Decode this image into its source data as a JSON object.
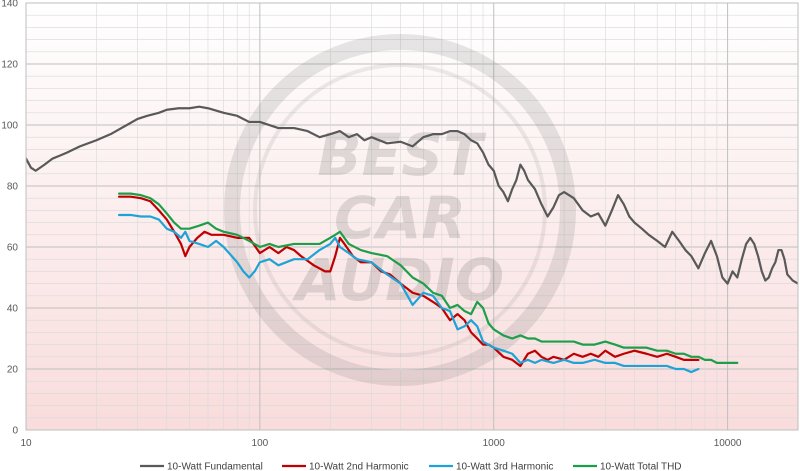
{
  "chart_data": {
    "type": "line",
    "x_scale": "log",
    "xlim": [
      10,
      20000
    ],
    "ylim": [
      0,
      140
    ],
    "y_ticks": [
      0,
      20,
      40,
      60,
      80,
      100,
      120,
      140
    ],
    "x_ticks": [
      10,
      100,
      1000,
      10000
    ],
    "x_tick_labels": [
      "10",
      "100",
      "1000",
      "10000"
    ],
    "grid": true,
    "legend_position": "bottom",
    "colors": {
      "background_top": "#ffffff",
      "background_bottom": "#f9dcdc",
      "grid_major": "#bfbfbf",
      "grid_minor": "#d9d9d9"
    },
    "watermark": [
      "BEST",
      "CAR",
      "AUDIO"
    ],
    "series": [
      {
        "name": "10-Watt Fundamental",
        "color": "#595959",
        "points": [
          [
            10,
            89
          ],
          [
            10.5,
            86
          ],
          [
            11,
            85
          ],
          [
            12,
            87
          ],
          [
            13,
            89
          ],
          [
            14,
            90
          ],
          [
            15,
            91
          ],
          [
            17,
            93
          ],
          [
            20,
            95
          ],
          [
            23,
            97
          ],
          [
            27,
            100
          ],
          [
            30,
            102
          ],
          [
            33,
            103
          ],
          [
            37,
            104
          ],
          [
            40,
            105
          ],
          [
            45,
            105.5
          ],
          [
            50,
            105.5
          ],
          [
            55,
            106
          ],
          [
            60,
            105.5
          ],
          [
            70,
            104
          ],
          [
            80,
            103
          ],
          [
            90,
            101
          ],
          [
            100,
            101
          ],
          [
            120,
            99
          ],
          [
            140,
            99
          ],
          [
            160,
            98
          ],
          [
            180,
            96
          ],
          [
            200,
            97
          ],
          [
            220,
            98
          ],
          [
            240,
            96
          ],
          [
            260,
            97
          ],
          [
            280,
            95
          ],
          [
            300,
            96
          ],
          [
            350,
            94
          ],
          [
            400,
            94.5
          ],
          [
            450,
            93
          ],
          [
            500,
            96
          ],
          [
            550,
            97
          ],
          [
            600,
            97
          ],
          [
            650,
            98
          ],
          [
            700,
            98
          ],
          [
            750,
            97
          ],
          [
            800,
            95
          ],
          [
            850,
            94
          ],
          [
            900,
            91
          ],
          [
            950,
            87
          ],
          [
            1000,
            85
          ],
          [
            1050,
            80
          ],
          [
            1100,
            78
          ],
          [
            1150,
            75
          ],
          [
            1200,
            79
          ],
          [
            1250,
            82
          ],
          [
            1300,
            87
          ],
          [
            1350,
            85
          ],
          [
            1400,
            82
          ],
          [
            1500,
            79
          ],
          [
            1600,
            74
          ],
          [
            1700,
            70
          ],
          [
            1800,
            73
          ],
          [
            1900,
            77
          ],
          [
            2000,
            78
          ],
          [
            2200,
            76
          ],
          [
            2400,
            72
          ],
          [
            2600,
            70
          ],
          [
            2800,
            71
          ],
          [
            3000,
            67
          ],
          [
            3200,
            72
          ],
          [
            3400,
            77
          ],
          [
            3600,
            74
          ],
          [
            3800,
            70
          ],
          [
            4000,
            68
          ],
          [
            4300,
            66
          ],
          [
            4600,
            64
          ],
          [
            5000,
            62
          ],
          [
            5400,
            60
          ],
          [
            5800,
            65
          ],
          [
            6200,
            62
          ],
          [
            6600,
            59
          ],
          [
            7000,
            57
          ],
          [
            7500,
            53
          ],
          [
            8000,
            58
          ],
          [
            8500,
            62
          ],
          [
            9000,
            57
          ],
          [
            9500,
            50
          ],
          [
            10000,
            48
          ],
          [
            10500,
            52
          ],
          [
            11000,
            50
          ],
          [
            11500,
            56
          ],
          [
            12000,
            61
          ],
          [
            12500,
            63
          ],
          [
            13000,
            61
          ],
          [
            13500,
            57
          ],
          [
            14000,
            52
          ],
          [
            14500,
            49
          ],
          [
            15000,
            50
          ],
          [
            15500,
            53
          ],
          [
            16000,
            55
          ],
          [
            16500,
            59
          ],
          [
            17000,
            59
          ],
          [
            17500,
            56
          ],
          [
            18000,
            51
          ],
          [
            19000,
            49
          ],
          [
            20000,
            48
          ]
        ]
      },
      {
        "name": "10-Watt 2nd Harmonic",
        "color": "#c00000",
        "points": [
          [
            25,
            76.5
          ],
          [
            28,
            76.5
          ],
          [
            31,
            76
          ],
          [
            34,
            75
          ],
          [
            37,
            72
          ],
          [
            40,
            69
          ],
          [
            43,
            65
          ],
          [
            46,
            61
          ],
          [
            48,
            57
          ],
          [
            50,
            60
          ],
          [
            54,
            63
          ],
          [
            58,
            65
          ],
          [
            62,
            64
          ],
          [
            70,
            64
          ],
          [
            80,
            63
          ],
          [
            90,
            63
          ],
          [
            100,
            58
          ],
          [
            110,
            60
          ],
          [
            120,
            58
          ],
          [
            130,
            60
          ],
          [
            140,
            59
          ],
          [
            150,
            57
          ],
          [
            170,
            54
          ],
          [
            190,
            52
          ],
          [
            200,
            52
          ],
          [
            210,
            57
          ],
          [
            220,
            63
          ],
          [
            230,
            61
          ],
          [
            250,
            57
          ],
          [
            270,
            55
          ],
          [
            300,
            55
          ],
          [
            330,
            52
          ],
          [
            360,
            51
          ],
          [
            400,
            48
          ],
          [
            450,
            45
          ],
          [
            500,
            44
          ],
          [
            550,
            42
          ],
          [
            600,
            40
          ],
          [
            650,
            36
          ],
          [
            700,
            38
          ],
          [
            750,
            36
          ],
          [
            800,
            32
          ],
          [
            850,
            30
          ],
          [
            900,
            28
          ],
          [
            950,
            28
          ],
          [
            1000,
            27
          ],
          [
            1100,
            24
          ],
          [
            1200,
            23
          ],
          [
            1300,
            21
          ],
          [
            1400,
            25
          ],
          [
            1500,
            26
          ],
          [
            1600,
            24
          ],
          [
            1700,
            23
          ],
          [
            1800,
            24
          ],
          [
            2000,
            23
          ],
          [
            2200,
            25
          ],
          [
            2400,
            24
          ],
          [
            2600,
            25
          ],
          [
            2800,
            24
          ],
          [
            3000,
            26
          ],
          [
            3300,
            24
          ],
          [
            3600,
            25
          ],
          [
            4000,
            26
          ],
          [
            4500,
            25
          ],
          [
            5000,
            24
          ],
          [
            5500,
            25
          ],
          [
            6000,
            24
          ],
          [
            6500,
            23
          ],
          [
            7000,
            23
          ],
          [
            7500,
            23
          ]
        ]
      },
      {
        "name": "10-Watt 3rd Harmonic",
        "color": "#1fa3d6",
        "points": [
          [
            25,
            70.5
          ],
          [
            28,
            70.5
          ],
          [
            31,
            70
          ],
          [
            34,
            70
          ],
          [
            37,
            69
          ],
          [
            40,
            66
          ],
          [
            43,
            65
          ],
          [
            46,
            63
          ],
          [
            48,
            65
          ],
          [
            50,
            62
          ],
          [
            55,
            61
          ],
          [
            60,
            60
          ],
          [
            65,
            62
          ],
          [
            70,
            60
          ],
          [
            80,
            55
          ],
          [
            85,
            52
          ],
          [
            90,
            50
          ],
          [
            95,
            52
          ],
          [
            100,
            55
          ],
          [
            110,
            56
          ],
          [
            120,
            54
          ],
          [
            140,
            56
          ],
          [
            160,
            56
          ],
          [
            180,
            59
          ],
          [
            200,
            61
          ],
          [
            210,
            63
          ],
          [
            220,
            60
          ],
          [
            240,
            58
          ],
          [
            260,
            56
          ],
          [
            300,
            55
          ],
          [
            350,
            51
          ],
          [
            400,
            48
          ],
          [
            450,
            41
          ],
          [
            500,
            45
          ],
          [
            550,
            44
          ],
          [
            600,
            40
          ],
          [
            650,
            39
          ],
          [
            700,
            33
          ],
          [
            750,
            34
          ],
          [
            800,
            36
          ],
          [
            850,
            34
          ],
          [
            900,
            29
          ],
          [
            1000,
            27
          ],
          [
            1100,
            26
          ],
          [
            1200,
            25
          ],
          [
            1300,
            22
          ],
          [
            1400,
            23
          ],
          [
            1500,
            22
          ],
          [
            1600,
            23
          ],
          [
            1800,
            22
          ],
          [
            2000,
            23
          ],
          [
            2200,
            22
          ],
          [
            2400,
            22
          ],
          [
            2700,
            23
          ],
          [
            3000,
            22
          ],
          [
            3300,
            22
          ],
          [
            3600,
            21
          ],
          [
            4000,
            21
          ],
          [
            4500,
            21
          ],
          [
            5000,
            21
          ],
          [
            5500,
            21
          ],
          [
            6000,
            20
          ],
          [
            6500,
            20
          ],
          [
            7000,
            19
          ],
          [
            7500,
            20
          ]
        ]
      },
      {
        "name": "10-Watt Total THD",
        "color": "#1e9e4a",
        "points": [
          [
            25,
            77.5
          ],
          [
            28,
            77.5
          ],
          [
            31,
            77
          ],
          [
            34,
            76
          ],
          [
            37,
            74
          ],
          [
            40,
            71
          ],
          [
            43,
            68
          ],
          [
            46,
            66
          ],
          [
            50,
            66
          ],
          [
            55,
            67
          ],
          [
            60,
            68
          ],
          [
            65,
            66
          ],
          [
            70,
            65
          ],
          [
            80,
            64
          ],
          [
            90,
            62
          ],
          [
            100,
            60
          ],
          [
            110,
            61
          ],
          [
            120,
            60
          ],
          [
            140,
            61
          ],
          [
            160,
            61
          ],
          [
            180,
            61
          ],
          [
            200,
            63
          ],
          [
            210,
            64
          ],
          [
            220,
            65
          ],
          [
            240,
            61
          ],
          [
            270,
            59
          ],
          [
            300,
            58
          ],
          [
            350,
            57
          ],
          [
            400,
            54
          ],
          [
            450,
            50
          ],
          [
            500,
            48
          ],
          [
            550,
            45
          ],
          [
            600,
            44
          ],
          [
            650,
            40
          ],
          [
            700,
            41
          ],
          [
            750,
            39
          ],
          [
            800,
            38
          ],
          [
            850,
            42
          ],
          [
            900,
            40
          ],
          [
            950,
            35
          ],
          [
            1000,
            33
          ],
          [
            1100,
            31
          ],
          [
            1200,
            30
          ],
          [
            1300,
            31
          ],
          [
            1400,
            30
          ],
          [
            1500,
            30
          ],
          [
            1600,
            29
          ],
          [
            1800,
            29
          ],
          [
            2000,
            29
          ],
          [
            2200,
            29
          ],
          [
            2400,
            28
          ],
          [
            2700,
            28
          ],
          [
            3000,
            29
          ],
          [
            3300,
            28
          ],
          [
            3600,
            27
          ],
          [
            4000,
            27
          ],
          [
            4500,
            27
          ],
          [
            5000,
            26
          ],
          [
            5500,
            26
          ],
          [
            6000,
            25
          ],
          [
            6500,
            25
          ],
          [
            7000,
            24
          ],
          [
            7500,
            24
          ],
          [
            8000,
            23
          ],
          [
            8500,
            23
          ],
          [
            9000,
            22
          ],
          [
            9500,
            22
          ],
          [
            10000,
            22
          ],
          [
            10500,
            22
          ],
          [
            11000,
            22
          ]
        ]
      }
    ]
  }
}
